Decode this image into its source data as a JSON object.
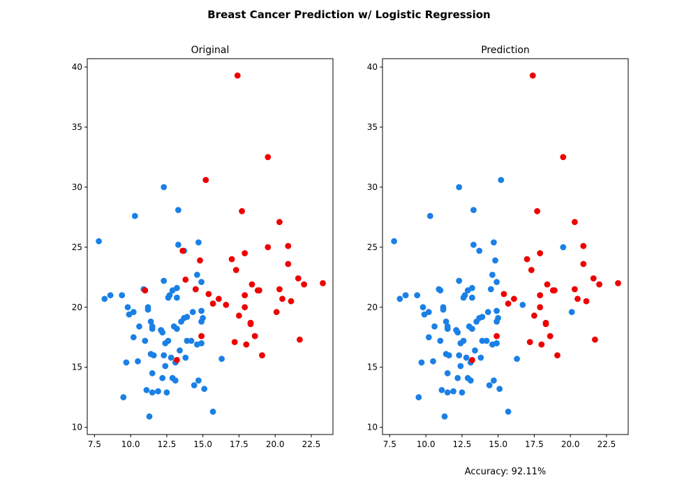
{
  "figure": {
    "title": "Breast Cancer Prediction w/ Logistic Regression",
    "footer_text": "Accuracy: 92.11%"
  },
  "colors": {
    "benign": "#1a80e6",
    "malignant": "#ee0000",
    "axes": "#000000"
  },
  "chart_data": [
    {
      "type": "scatter",
      "title": "Original",
      "xlim": [
        7.0,
        24.0
      ],
      "ylim": [
        9.4,
        40.7
      ],
      "xticks": [
        7.5,
        10.0,
        12.5,
        15.0,
        17.5,
        20.0,
        22.5
      ],
      "yticks": [
        10,
        15,
        20,
        25,
        30,
        35,
        40
      ],
      "grid": false,
      "series": [
        {
          "color": "blue",
          "points": [
            [
              7.8,
              25.5
            ],
            [
              8.2,
              20.7
            ],
            [
              8.6,
              21.0
            ],
            [
              9.4,
              21.0
            ],
            [
              9.5,
              12.5
            ],
            [
              9.7,
              15.4
            ],
            [
              9.8,
              20.0
            ],
            [
              9.9,
              19.4
            ],
            [
              10.2,
              19.6
            ],
            [
              10.2,
              17.5
            ],
            [
              10.3,
              27.6
            ],
            [
              10.5,
              15.5
            ],
            [
              10.6,
              18.4
            ],
            [
              10.9,
              21.5
            ],
            [
              11.0,
              21.4
            ],
            [
              11.0,
              17.2
            ],
            [
              11.1,
              13.1
            ],
            [
              11.2,
              20.0
            ],
            [
              11.2,
              19.8
            ],
            [
              11.3,
              10.9
            ],
            [
              11.4,
              18.8
            ],
            [
              11.4,
              16.1
            ],
            [
              11.5,
              14.5
            ],
            [
              11.5,
              18.4
            ],
            [
              11.5,
              18.2
            ],
            [
              11.5,
              12.9
            ],
            [
              11.6,
              16.0
            ],
            [
              11.9,
              13.0
            ],
            [
              12.1,
              18.1
            ],
            [
              12.2,
              17.9
            ],
            [
              12.2,
              14.1
            ],
            [
              12.3,
              30.0
            ],
            [
              12.3,
              16.0
            ],
            [
              12.3,
              22.2
            ],
            [
              12.4,
              15.1
            ],
            [
              12.4,
              17.0
            ],
            [
              12.5,
              12.9
            ],
            [
              12.6,
              20.8
            ],
            [
              12.6,
              17.2
            ],
            [
              12.7,
              21.0
            ],
            [
              12.8,
              15.8
            ],
            [
              12.9,
              14.1
            ],
            [
              12.9,
              21.4
            ],
            [
              13.0,
              18.4
            ],
            [
              13.1,
              13.9
            ],
            [
              13.1,
              15.4
            ],
            [
              13.2,
              18.2
            ],
            [
              13.2,
              20.8
            ],
            [
              13.2,
              21.6
            ],
            [
              13.3,
              25.2
            ],
            [
              13.3,
              28.1
            ],
            [
              13.4,
              16.4
            ],
            [
              13.5,
              18.8
            ],
            [
              13.7,
              24.7
            ],
            [
              13.7,
              19.1
            ],
            [
              13.8,
              15.8
            ],
            [
              13.9,
              17.2
            ],
            [
              13.9,
              19.2
            ],
            [
              14.2,
              17.2
            ],
            [
              14.3,
              19.6
            ],
            [
              14.4,
              13.5
            ],
            [
              14.5,
              21.5
            ],
            [
              14.6,
              22.7
            ],
            [
              14.6,
              16.9
            ],
            [
              14.7,
              13.9
            ],
            [
              14.7,
              25.4
            ],
            [
              14.9,
              17.0
            ],
            [
              14.9,
              18.8
            ],
            [
              14.9,
              22.1
            ],
            [
              14.9,
              19.7
            ],
            [
              15.0,
              19.1
            ],
            [
              15.1,
              13.2
            ],
            [
              15.7,
              11.3
            ],
            [
              16.3,
              15.7
            ]
          ]
        },
        {
          "color": "red",
          "points": [
            [
              11.0,
              21.4
            ],
            [
              13.2,
              15.6
            ],
            [
              13.6,
              24.7
            ],
            [
              13.8,
              22.3
            ],
            [
              14.5,
              21.5
            ],
            [
              14.8,
              23.9
            ],
            [
              14.9,
              17.6
            ],
            [
              15.2,
              30.6
            ],
            [
              15.4,
              21.1
            ],
            [
              15.7,
              20.3
            ],
            [
              16.1,
              20.7
            ],
            [
              16.6,
              20.2
            ],
            [
              17.0,
              24.0
            ],
            [
              17.2,
              17.1
            ],
            [
              17.3,
              23.1
            ],
            [
              17.4,
              39.3
            ],
            [
              17.5,
              19.3
            ],
            [
              17.7,
              28.0
            ],
            [
              17.9,
              21.0
            ],
            [
              17.9,
              24.5
            ],
            [
              17.9,
              20.0
            ],
            [
              18.0,
              16.9
            ],
            [
              18.3,
              18.7
            ],
            [
              18.3,
              18.6
            ],
            [
              18.4,
              21.9
            ],
            [
              18.6,
              17.6
            ],
            [
              18.8,
              21.4
            ],
            [
              18.9,
              21.4
            ],
            [
              19.1,
              16.0
            ],
            [
              19.5,
              32.5
            ],
            [
              19.5,
              25.0
            ],
            [
              20.1,
              19.6
            ],
            [
              20.3,
              27.1
            ],
            [
              20.3,
              21.5
            ],
            [
              20.5,
              20.7
            ],
            [
              20.9,
              23.6
            ],
            [
              20.9,
              25.1
            ],
            [
              21.1,
              20.5
            ],
            [
              21.6,
              22.4
            ],
            [
              21.7,
              17.3
            ],
            [
              22.0,
              21.9
            ],
            [
              23.3,
              22.0
            ]
          ]
        }
      ]
    },
    {
      "type": "scatter",
      "title": "Prediction",
      "xlim": [
        7.0,
        24.0
      ],
      "ylim": [
        9.4,
        40.7
      ],
      "xticks": [
        7.5,
        10.0,
        12.5,
        15.0,
        17.5,
        20.0,
        22.5
      ],
      "yticks": [
        10,
        15,
        20,
        25,
        30,
        35,
        40
      ],
      "grid": false,
      "series": [
        {
          "color": "blue",
          "points": [
            [
              7.8,
              25.5
            ],
            [
              8.2,
              20.7
            ],
            [
              8.6,
              21.0
            ],
            [
              9.4,
              21.0
            ],
            [
              9.5,
              12.5
            ],
            [
              9.7,
              15.4
            ],
            [
              9.8,
              20.0
            ],
            [
              9.9,
              19.4
            ],
            [
              10.2,
              19.6
            ],
            [
              10.2,
              17.5
            ],
            [
              10.3,
              27.6
            ],
            [
              10.5,
              15.5
            ],
            [
              10.6,
              18.4
            ],
            [
              10.9,
              21.5
            ],
            [
              11.0,
              21.4
            ],
            [
              11.0,
              17.2
            ],
            [
              11.1,
              13.1
            ],
            [
              11.2,
              20.0
            ],
            [
              11.2,
              19.8
            ],
            [
              11.3,
              10.9
            ],
            [
              11.4,
              18.8
            ],
            [
              11.4,
              16.1
            ],
            [
              11.5,
              14.5
            ],
            [
              11.5,
              18.4
            ],
            [
              11.5,
              18.2
            ],
            [
              11.5,
              12.9
            ],
            [
              11.6,
              16.0
            ],
            [
              11.9,
              13.0
            ],
            [
              12.1,
              18.1
            ],
            [
              12.2,
              17.9
            ],
            [
              12.2,
              14.1
            ],
            [
              12.3,
              30.0
            ],
            [
              12.3,
              16.0
            ],
            [
              12.3,
              22.2
            ],
            [
              12.4,
              15.1
            ],
            [
              12.4,
              17.0
            ],
            [
              12.5,
              12.9
            ],
            [
              12.6,
              20.8
            ],
            [
              12.6,
              17.2
            ],
            [
              12.7,
              21.0
            ],
            [
              12.8,
              15.8
            ],
            [
              12.9,
              14.1
            ],
            [
              12.9,
              21.4
            ],
            [
              13.0,
              18.4
            ],
            [
              13.1,
              13.9
            ],
            [
              13.1,
              15.4
            ],
            [
              13.2,
              18.2
            ],
            [
              13.2,
              20.8
            ],
            [
              13.2,
              21.6
            ],
            [
              13.3,
              25.2
            ],
            [
              13.3,
              28.1
            ],
            [
              13.4,
              16.4
            ],
            [
              13.5,
              18.8
            ],
            [
              13.7,
              24.7
            ],
            [
              13.7,
              19.1
            ],
            [
              13.8,
              15.8
            ],
            [
              13.9,
              17.2
            ],
            [
              13.9,
              19.2
            ],
            [
              14.2,
              17.2
            ],
            [
              14.3,
              19.6
            ],
            [
              14.4,
              13.5
            ],
            [
              14.5,
              21.5
            ],
            [
              14.6,
              22.7
            ],
            [
              14.6,
              16.9
            ],
            [
              14.7,
              13.9
            ],
            [
              14.7,
              25.4
            ],
            [
              14.8,
              23.9
            ],
            [
              14.9,
              17.0
            ],
            [
              14.9,
              18.8
            ],
            [
              14.9,
              22.1
            ],
            [
              14.9,
              19.7
            ],
            [
              15.0,
              19.1
            ],
            [
              15.1,
              13.2
            ],
            [
              15.2,
              30.6
            ],
            [
              15.7,
              11.3
            ],
            [
              16.3,
              15.7
            ],
            [
              16.7,
              20.2
            ],
            [
              19.5,
              25.0
            ],
            [
              20.1,
              19.6
            ]
          ]
        },
        {
          "color": "red",
          "points": [
            [
              13.2,
              15.6
            ],
            [
              14.9,
              17.6
            ],
            [
              15.4,
              21.1
            ],
            [
              15.7,
              20.3
            ],
            [
              16.1,
              20.7
            ],
            [
              17.0,
              24.0
            ],
            [
              17.2,
              17.1
            ],
            [
              17.3,
              23.1
            ],
            [
              17.4,
              39.3
            ],
            [
              17.5,
              19.3
            ],
            [
              17.7,
              28.0
            ],
            [
              17.9,
              21.0
            ],
            [
              17.9,
              24.5
            ],
            [
              17.9,
              20.0
            ],
            [
              18.0,
              16.9
            ],
            [
              18.3,
              18.7
            ],
            [
              18.3,
              18.6
            ],
            [
              18.4,
              21.9
            ],
            [
              18.6,
              17.6
            ],
            [
              18.8,
              21.4
            ],
            [
              18.9,
              21.4
            ],
            [
              19.1,
              16.0
            ],
            [
              19.5,
              32.5
            ],
            [
              20.3,
              27.1
            ],
            [
              20.3,
              21.5
            ],
            [
              20.5,
              20.7
            ],
            [
              20.9,
              23.6
            ],
            [
              20.9,
              25.1
            ],
            [
              21.1,
              20.5
            ],
            [
              21.6,
              22.4
            ],
            [
              21.7,
              17.3
            ],
            [
              22.0,
              21.9
            ],
            [
              23.3,
              22.0
            ]
          ]
        }
      ]
    }
  ]
}
